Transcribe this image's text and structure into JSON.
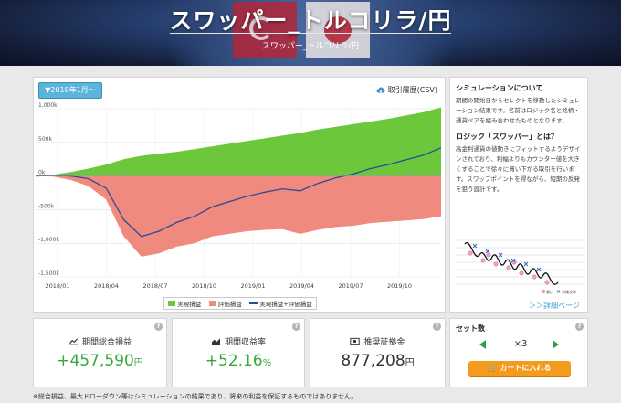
{
  "header": {
    "title": "スワッパー_トルコリラ/円",
    "subtitle": "スワッパー_トルコリラ/円"
  },
  "toolbar": {
    "date_button": "▼2018年1月〜",
    "history_link": "取引履歴(CSV)"
  },
  "chart_data": {
    "type": "area",
    "x_ticks": [
      "2018/01",
      "2018/04",
      "2018/07",
      "2018/10",
      "2019/01",
      "2019/04",
      "2019/07",
      "2019/10"
    ],
    "y_ticks": [
      "1,000k",
      "500k",
      "0k",
      "-500k",
      "-1,000k",
      "-1,500k"
    ],
    "ylim": [
      -1500000,
      1000000
    ],
    "x": [
      "2018/01",
      "2018/03",
      "2018/05",
      "2018/06",
      "2018/07",
      "2018/08",
      "2018/08",
      "2018/08",
      "2018/09",
      "2018/10",
      "2018/11",
      "2018/12",
      "2019/01",
      "2019/02",
      "2019/03",
      "2019/04",
      "2019/05",
      "2019/06",
      "2019/07",
      "2019/08",
      "2019/09",
      "2019/10",
      "2019/11",
      "2019/12"
    ],
    "series": [
      {
        "name": "実現損益",
        "color": "#6cc83a",
        "values": [
          0,
          20000,
          60000,
          110000,
          170000,
          250000,
          300000,
          330000,
          360000,
          400000,
          440000,
          480000,
          520000,
          560000,
          600000,
          640000,
          690000,
          730000,
          770000,
          810000,
          850000,
          900000,
          950000,
          1020000
        ]
      },
      {
        "name": "評価損益",
        "color": "#f08a7e",
        "values": [
          0,
          -10000,
          -60000,
          -150000,
          -350000,
          -900000,
          -1200000,
          -1150000,
          -1050000,
          -1000000,
          -900000,
          -860000,
          -820000,
          -800000,
          -790000,
          -860000,
          -800000,
          -760000,
          -740000,
          -700000,
          -680000,
          -660000,
          -640000,
          -600000
        ]
      },
      {
        "name": "実現損益+評価損益",
        "color": "#2a4a9c",
        "values": [
          0,
          10000,
          0,
          -40000,
          -180000,
          -650000,
          -900000,
          -820000,
          -690000,
          -600000,
          -460000,
          -380000,
          -300000,
          -240000,
          -190000,
          -220000,
          -110000,
          -30000,
          30000,
          110000,
          170000,
          240000,
          310000,
          420000
        ]
      }
    ],
    "legend_position": "bottom",
    "grid": true
  },
  "info": {
    "sim_title": "シミュレーションについて",
    "sim_text": "期間の開始日からセレクトを移動したシミュレーション結果です。名前はロジック名と銘柄・通貨ペアを組み合わせたものとなります。",
    "logic_title": "ロジック「スワッパー」とは？",
    "logic_text": "高金利通貨の値動きにフィットするようデザインされており、利幅よりもカウンター値を大きくすることで徐々に買い下がる取引を行います。スワップポイントを得ながら、短期の反発を狙う設計です。",
    "fig_legend_buy": "買い",
    "fig_legend_close": "利確決済",
    "detail_link": "＞＞詳細ページ"
  },
  "stats": {
    "total_label": "期間総合損益",
    "total_value": "+457,590",
    "total_unit": "円",
    "rate_label": "期間収益率",
    "rate_value": "+52.16",
    "rate_unit": "%",
    "margin_label": "推奨証拠金",
    "margin_value": "877,208",
    "margin_unit": "円"
  },
  "set": {
    "title": "セット数",
    "quantity": "×3",
    "cart_button": "カートに入れる"
  },
  "help_mark": "?",
  "footnote": "※総合損益、最大ドローダウン等はシミュレーションの結果であり、将来の利益を保証するものではありません。"
}
